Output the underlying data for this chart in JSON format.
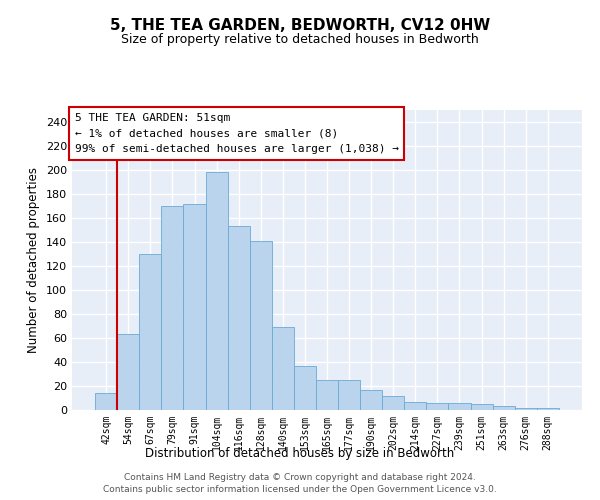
{
  "title": "5, THE TEA GARDEN, BEDWORTH, CV12 0HW",
  "subtitle": "Size of property relative to detached houses in Bedworth",
  "xlabel": "Distribution of detached houses by size in Bedworth",
  "ylabel": "Number of detached properties",
  "bar_color": "#bad4ed",
  "bar_edge_color": "#6aaad4",
  "background_color": "#e8eef8",
  "grid_color": "#ffffff",
  "categories": [
    "42sqm",
    "54sqm",
    "67sqm",
    "79sqm",
    "91sqm",
    "104sqm",
    "116sqm",
    "128sqm",
    "140sqm",
    "153sqm",
    "165sqm",
    "177sqm",
    "190sqm",
    "202sqm",
    "214sqm",
    "227sqm",
    "239sqm",
    "251sqm",
    "263sqm",
    "276sqm",
    "288sqm"
  ],
  "values": [
    14,
    63,
    130,
    170,
    172,
    198,
    153,
    141,
    69,
    37,
    25,
    25,
    17,
    12,
    7,
    6,
    6,
    5,
    3,
    2,
    2
  ],
  "ylim": [
    0,
    250
  ],
  "yticks": [
    0,
    20,
    40,
    60,
    80,
    100,
    120,
    140,
    160,
    180,
    200,
    220,
    240
  ],
  "annotation_line1": "5 THE TEA GARDEN: 51sqm",
  "annotation_line2": "← 1% of detached houses are smaller (8)",
  "annotation_line3": "99% of semi-detached houses are larger (1,038) →",
  "annotation_box_color": "#cc0000",
  "vline_x": 0.5,
  "footer_line1": "Contains HM Land Registry data © Crown copyright and database right 2024.",
  "footer_line2": "Contains public sector information licensed under the Open Government Licence v3.0."
}
